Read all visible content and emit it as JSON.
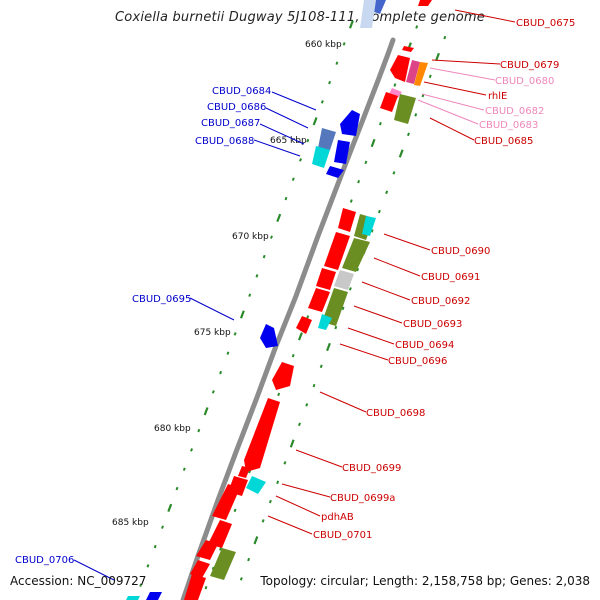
{
  "title": "Coxiella burnetii Dugway 5J108-111, complete genome",
  "accession": "Accession: NC_009727",
  "summary": "Topology: circular; Length: 2,158,758 bp; Genes: 2,038",
  "colors": {
    "backbone": "#9a9a9a",
    "forward_gene": "#ff0000",
    "reverse_gene": "#0000ff",
    "cyan": "#00e0e0",
    "olive": "#6b8e23",
    "gray": "#c8c8c8",
    "tick": "#2a8a2a",
    "label_red": "#cc0000",
    "label_pink": "#ee88bb",
    "label_blue": "#0000cc"
  },
  "kbp_markers": [
    "660 kbp",
    "665 kbp",
    "670 kbp",
    "675 kbp",
    "680 kbp",
    "685 kbp"
  ],
  "labels_right": [
    {
      "text": "CBUD_0675",
      "color": "red"
    },
    {
      "text": "CBUD_0679",
      "color": "red"
    },
    {
      "text": "CBUD_0680",
      "color": "pink"
    },
    {
      "text": "rhlE",
      "color": "red"
    },
    {
      "text": "CBUD_0682",
      "color": "pink"
    },
    {
      "text": "CBUD_0683",
      "color": "pink"
    },
    {
      "text": "CBUD_0685",
      "color": "red"
    },
    {
      "text": "CBUD_0690",
      "color": "red"
    },
    {
      "text": "CBUD_0691",
      "color": "red"
    },
    {
      "text": "CBUD_0692",
      "color": "red"
    },
    {
      "text": "CBUD_0693",
      "color": "red"
    },
    {
      "text": "CBUD_0694",
      "color": "red"
    },
    {
      "text": "CBUD_0696",
      "color": "red"
    },
    {
      "text": "CBUD_0698",
      "color": "red"
    },
    {
      "text": "CBUD_0699",
      "color": "red"
    },
    {
      "text": "CBUD_0699a",
      "color": "red"
    },
    {
      "text": "pdhAB",
      "color": "red"
    },
    {
      "text": "CBUD_0701",
      "color": "red"
    }
  ],
  "labels_left": [
    {
      "text": "CBUD_0684"
    },
    {
      "text": "CBUD_0686"
    },
    {
      "text": "CBUD_0687"
    },
    {
      "text": "CBUD_0688"
    },
    {
      "text": "CBUD_0695"
    },
    {
      "text": "CBUD_0706"
    }
  ]
}
